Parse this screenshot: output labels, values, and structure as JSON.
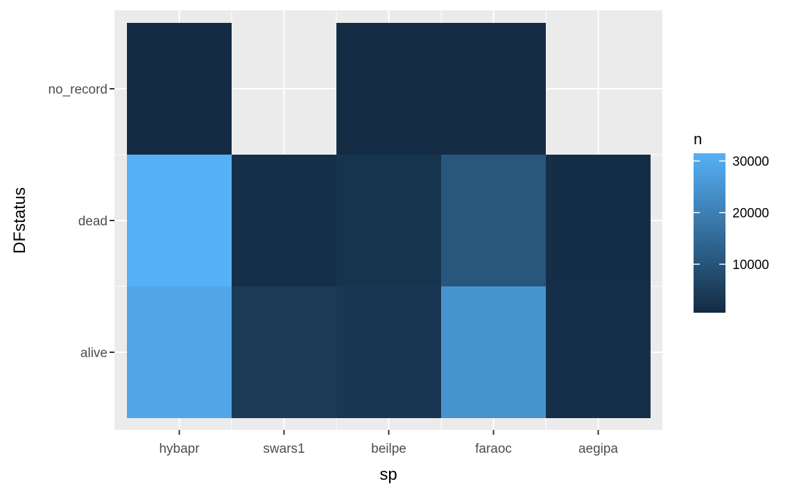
{
  "chart_data": {
    "type": "heatmap",
    "xlabel": "sp",
    "ylabel": "DFstatus",
    "categories_x": [
      "hybapr",
      "swars1",
      "beilpe",
      "faraoc",
      "aegipa"
    ],
    "categories_y": [
      "alive",
      "dead",
      "no_record"
    ],
    "cells": [
      {
        "x": "hybapr",
        "y": "alive",
        "value": 29000
      },
      {
        "x": "hybapr",
        "y": "dead",
        "value": 31500
      },
      {
        "x": "hybapr",
        "y": "no_record",
        "value": 600
      },
      {
        "x": "swars1",
        "y": "alive",
        "value": 4200
      },
      {
        "x": "swars1",
        "y": "dead",
        "value": 1500
      },
      {
        "x": "beilpe",
        "y": "alive",
        "value": 3300
      },
      {
        "x": "beilpe",
        "y": "dead",
        "value": 2600
      },
      {
        "x": "beilpe",
        "y": "no_record",
        "value": 1000
      },
      {
        "x": "faraoc",
        "y": "alive",
        "value": 24500
      },
      {
        "x": "faraoc",
        "y": "dead",
        "value": 10500
      },
      {
        "x": "faraoc",
        "y": "no_record",
        "value": 1000
      },
      {
        "x": "aegipa",
        "y": "alive",
        "value": 1600
      },
      {
        "x": "aegipa",
        "y": "dead",
        "value": 1400
      }
    ],
    "legend": {
      "title": "n",
      "ticks": [
        10000,
        20000,
        30000
      ],
      "tick_labels": [
        "10000",
        "20000",
        "30000"
      ],
      "range": [
        600,
        31500
      ],
      "low_color": "#132b43",
      "high_color": "#56b1f7",
      "position": "right"
    },
    "colors": {
      "panel_background": "#ebebeb",
      "grid": "#ffffff"
    },
    "grid": true
  }
}
